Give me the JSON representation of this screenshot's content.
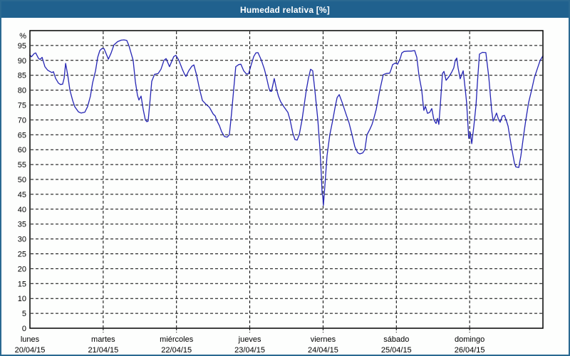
{
  "window": {
    "title": "Humedad relativa [%]"
  },
  "colors": {
    "titlebar_bg": "#20618e",
    "titlebar_text": "#ffffff",
    "outer_border": "#2a6991",
    "plot_bg": "#fdfefd",
    "line": "#2525b4",
    "grid": "#000000",
    "axis": "#000000",
    "label": "#000000"
  },
  "chart_data": {
    "type": "line",
    "title": "Humedad relativa [%]",
    "unit_label": "%",
    "ylim": [
      0,
      100
    ],
    "y_ticks": [
      0,
      5,
      10,
      15,
      20,
      25,
      30,
      35,
      40,
      45,
      50,
      55,
      60,
      65,
      70,
      75,
      80,
      85,
      90,
      95
    ],
    "xlim_hours": [
      0,
      168
    ],
    "grid": "dashed",
    "legend_position": "none",
    "x_day_labels": [
      {
        "day": "lunes",
        "date": "20/04/15",
        "hour": 0
      },
      {
        "day": "martes",
        "date": "21/04/15",
        "hour": 24
      },
      {
        "day": "miércoles",
        "date": "22/04/15",
        "hour": 48
      },
      {
        "day": "jueves",
        "date": "23/04/15",
        "hour": 72
      },
      {
        "day": "viernes",
        "date": "24/04/15",
        "hour": 96
      },
      {
        "day": "sábado",
        "date": "25/04/15",
        "hour": 120
      },
      {
        "day": "domingo",
        "date": "26/04/15",
        "hour": 144
      }
    ],
    "day_gridlines_hours": [
      24,
      48,
      72,
      96,
      120,
      144
    ],
    "series": [
      {
        "name": "Humedad relativa",
        "points_hours_percent": [
          [
            0,
            91.8
          ],
          [
            0.5,
            91.2
          ],
          [
            1.4,
            92.3
          ],
          [
            1.9,
            92.5
          ],
          [
            2.8,
            90.7
          ],
          [
            3.3,
            90.3
          ],
          [
            4,
            91
          ],
          [
            4.9,
            87.9
          ],
          [
            5.8,
            86.7
          ],
          [
            6.5,
            86.3
          ],
          [
            7.2,
            85.9
          ],
          [
            7.7,
            86.2
          ],
          [
            8.4,
            84
          ],
          [
            9.3,
            82.4
          ],
          [
            10,
            81.9
          ],
          [
            10.7,
            82
          ],
          [
            11.2,
            84
          ],
          [
            11.7,
            89
          ],
          [
            12.4,
            85
          ],
          [
            13.1,
            80
          ],
          [
            14,
            76.5
          ],
          [
            14.7,
            74.4
          ],
          [
            15.9,
            72.7
          ],
          [
            16.8,
            72.3
          ],
          [
            18,
            72.6
          ],
          [
            18.9,
            74.5
          ],
          [
            19.8,
            78
          ],
          [
            20.5,
            82.4
          ],
          [
            21.5,
            86.5
          ],
          [
            22.2,
            91
          ],
          [
            22.9,
            93.3
          ],
          [
            23.6,
            94
          ],
          [
            24.3,
            93.9
          ],
          [
            25,
            92.2
          ],
          [
            25.7,
            90.4
          ],
          [
            26.6,
            92.5
          ],
          [
            27.5,
            95.2
          ],
          [
            28.7,
            96.3
          ],
          [
            29.9,
            96.8
          ],
          [
            30.8,
            96.9
          ],
          [
            31.7,
            96.7
          ],
          [
            32.4,
            95
          ],
          [
            33.8,
            90
          ],
          [
            34.5,
            83
          ],
          [
            35.2,
            78.3
          ],
          [
            35.7,
            76.7
          ],
          [
            36.4,
            78
          ],
          [
            37.1,
            73.5
          ],
          [
            37.8,
            70
          ],
          [
            38.3,
            69.4
          ],
          [
            38.7,
            69.6
          ],
          [
            39.2,
            75
          ],
          [
            39.9,
            83
          ],
          [
            40.8,
            85.3
          ],
          [
            42,
            85.6
          ],
          [
            42.9,
            87
          ],
          [
            43.9,
            90
          ],
          [
            44.6,
            90.6
          ],
          [
            45.7,
            87.9
          ],
          [
            47.1,
            91.3
          ],
          [
            47.8,
            91.7
          ],
          [
            48.8,
            90
          ],
          [
            49.9,
            87
          ],
          [
            50.6,
            85.4
          ],
          [
            51.1,
            84.6
          ],
          [
            52,
            86.5
          ],
          [
            53,
            88
          ],
          [
            53.7,
            88.5
          ],
          [
            54.6,
            85
          ],
          [
            55.5,
            80.5
          ],
          [
            56.5,
            76.5
          ],
          [
            57.6,
            75.3
          ],
          [
            58.8,
            74.2
          ],
          [
            60,
            72
          ],
          [
            60.7,
            71.3
          ],
          [
            61.1,
            70
          ],
          [
            62.1,
            68
          ],
          [
            62.8,
            66
          ],
          [
            63.7,
            64.4
          ],
          [
            64.6,
            64.2
          ],
          [
            65.3,
            65
          ],
          [
            66,
            72
          ],
          [
            66.7,
            80
          ],
          [
            67.4,
            87.9
          ],
          [
            68.4,
            88.6
          ],
          [
            69.1,
            88.7
          ],
          [
            70,
            86.5
          ],
          [
            70.9,
            85.4
          ],
          [
            71.6,
            85.5
          ],
          [
            72.3,
            88
          ],
          [
            73.3,
            91.3
          ],
          [
            74,
            92.5
          ],
          [
            74.7,
            92.6
          ],
          [
            75.8,
            90
          ],
          [
            76.8,
            87
          ],
          [
            77.5,
            84.2
          ],
          [
            78.2,
            81
          ],
          [
            78.6,
            79.7
          ],
          [
            79.1,
            79.6
          ],
          [
            80,
            83.9
          ],
          [
            80.7,
            80.5
          ],
          [
            81.4,
            77.9
          ],
          [
            82.1,
            76.1
          ],
          [
            83.3,
            74.2
          ],
          [
            84.5,
            72.5
          ],
          [
            85.2,
            70
          ],
          [
            86.1,
            65.5
          ],
          [
            86.8,
            63.4
          ],
          [
            87.5,
            63.2
          ],
          [
            88.2,
            65
          ],
          [
            89.1,
            70
          ],
          [
            89.8,
            75
          ],
          [
            90.5,
            80
          ],
          [
            91.2,
            84
          ],
          [
            91.9,
            87
          ],
          [
            92.6,
            86.5
          ],
          [
            93.3,
            80
          ],
          [
            94.3,
            70
          ],
          [
            95,
            60
          ],
          [
            95.4,
            52
          ],
          [
            95.7,
            45.2
          ],
          [
            95.9,
            44.5
          ],
          [
            96.1,
            41.3
          ],
          [
            96.6,
            48
          ],
          [
            97.3,
            58
          ],
          [
            98.2,
            65
          ],
          [
            99.2,
            70
          ],
          [
            99.9,
            74
          ],
          [
            100.6,
            77.5
          ],
          [
            101.3,
            78.5
          ],
          [
            102.2,
            76
          ],
          [
            103.6,
            71.7
          ],
          [
            104.5,
            69
          ],
          [
            105.5,
            65
          ],
          [
            106.4,
            61
          ],
          [
            107.3,
            59
          ],
          [
            108,
            58.6
          ],
          [
            109,
            58.9
          ],
          [
            109.7,
            60
          ],
          [
            110.4,
            65
          ],
          [
            111.3,
            66.8
          ],
          [
            112,
            68.4
          ],
          [
            112.5,
            70
          ],
          [
            113.4,
            73.5
          ],
          [
            114.6,
            80
          ],
          [
            115.7,
            85.2
          ],
          [
            116.7,
            85.6
          ],
          [
            117.8,
            85.7
          ],
          [
            118.3,
            87
          ],
          [
            118.8,
            88.6
          ],
          [
            119.7,
            89.1
          ],
          [
            120.4,
            88.7
          ],
          [
            121.3,
            90.8
          ],
          [
            121.8,
            92.5
          ],
          [
            122.5,
            93
          ],
          [
            123.7,
            93.1
          ],
          [
            124.8,
            93.1
          ],
          [
            126,
            93.3
          ],
          [
            126.7,
            91
          ],
          [
            127.4,
            85
          ],
          [
            128.3,
            80
          ],
          [
            128.8,
            75
          ],
          [
            129,
            73.2
          ],
          [
            129.5,
            74.6
          ],
          [
            130.2,
            72.2
          ],
          [
            130.9,
            72.5
          ],
          [
            131.6,
            73.8
          ],
          [
            132.3,
            70
          ],
          [
            133,
            68.8
          ],
          [
            133.5,
            70.5
          ],
          [
            133.9,
            68.5
          ],
          [
            134.4,
            75
          ],
          [
            135.1,
            85.6
          ],
          [
            135.6,
            86.3
          ],
          [
            136.3,
            83.3
          ],
          [
            137.2,
            84.5
          ],
          [
            138.1,
            86
          ],
          [
            138.8,
            87.5
          ],
          [
            139.3,
            90
          ],
          [
            139.8,
            90.8
          ],
          [
            140.2,
            87.5
          ],
          [
            140.9,
            83.8
          ],
          [
            141.9,
            86.5
          ],
          [
            142.6,
            80
          ],
          [
            143,
            75.8
          ],
          [
            143.7,
            63.8
          ],
          [
            144.2,
            65.8
          ],
          [
            144.7,
            62
          ],
          [
            145.4,
            68
          ],
          [
            146.1,
            75
          ],
          [
            146.5,
            82
          ],
          [
            147.2,
            92.1
          ],
          [
            148.2,
            92.7
          ],
          [
            149.3,
            92.6
          ],
          [
            150.3,
            84.2
          ],
          [
            151.2,
            73.3
          ],
          [
            151.7,
            69.6
          ],
          [
            152.1,
            70.5
          ],
          [
            152.8,
            72.3
          ],
          [
            153.5,
            70
          ],
          [
            154,
            69.2
          ],
          [
            154.7,
            71.3
          ],
          [
            155.4,
            71.5
          ],
          [
            156.1,
            69.5
          ],
          [
            156.6,
            67.9
          ],
          [
            157.7,
            60.8
          ],
          [
            158.7,
            55.4
          ],
          [
            159.1,
            54.2
          ],
          [
            160.1,
            54
          ],
          [
            160.8,
            58
          ],
          [
            161.7,
            65
          ],
          [
            162.4,
            70
          ],
          [
            163.3,
            75.8
          ],
          [
            164.3,
            80
          ],
          [
            165.2,
            84.2
          ],
          [
            166.1,
            87
          ],
          [
            167.1,
            90
          ],
          [
            168,
            91.5
          ]
        ]
      }
    ]
  }
}
